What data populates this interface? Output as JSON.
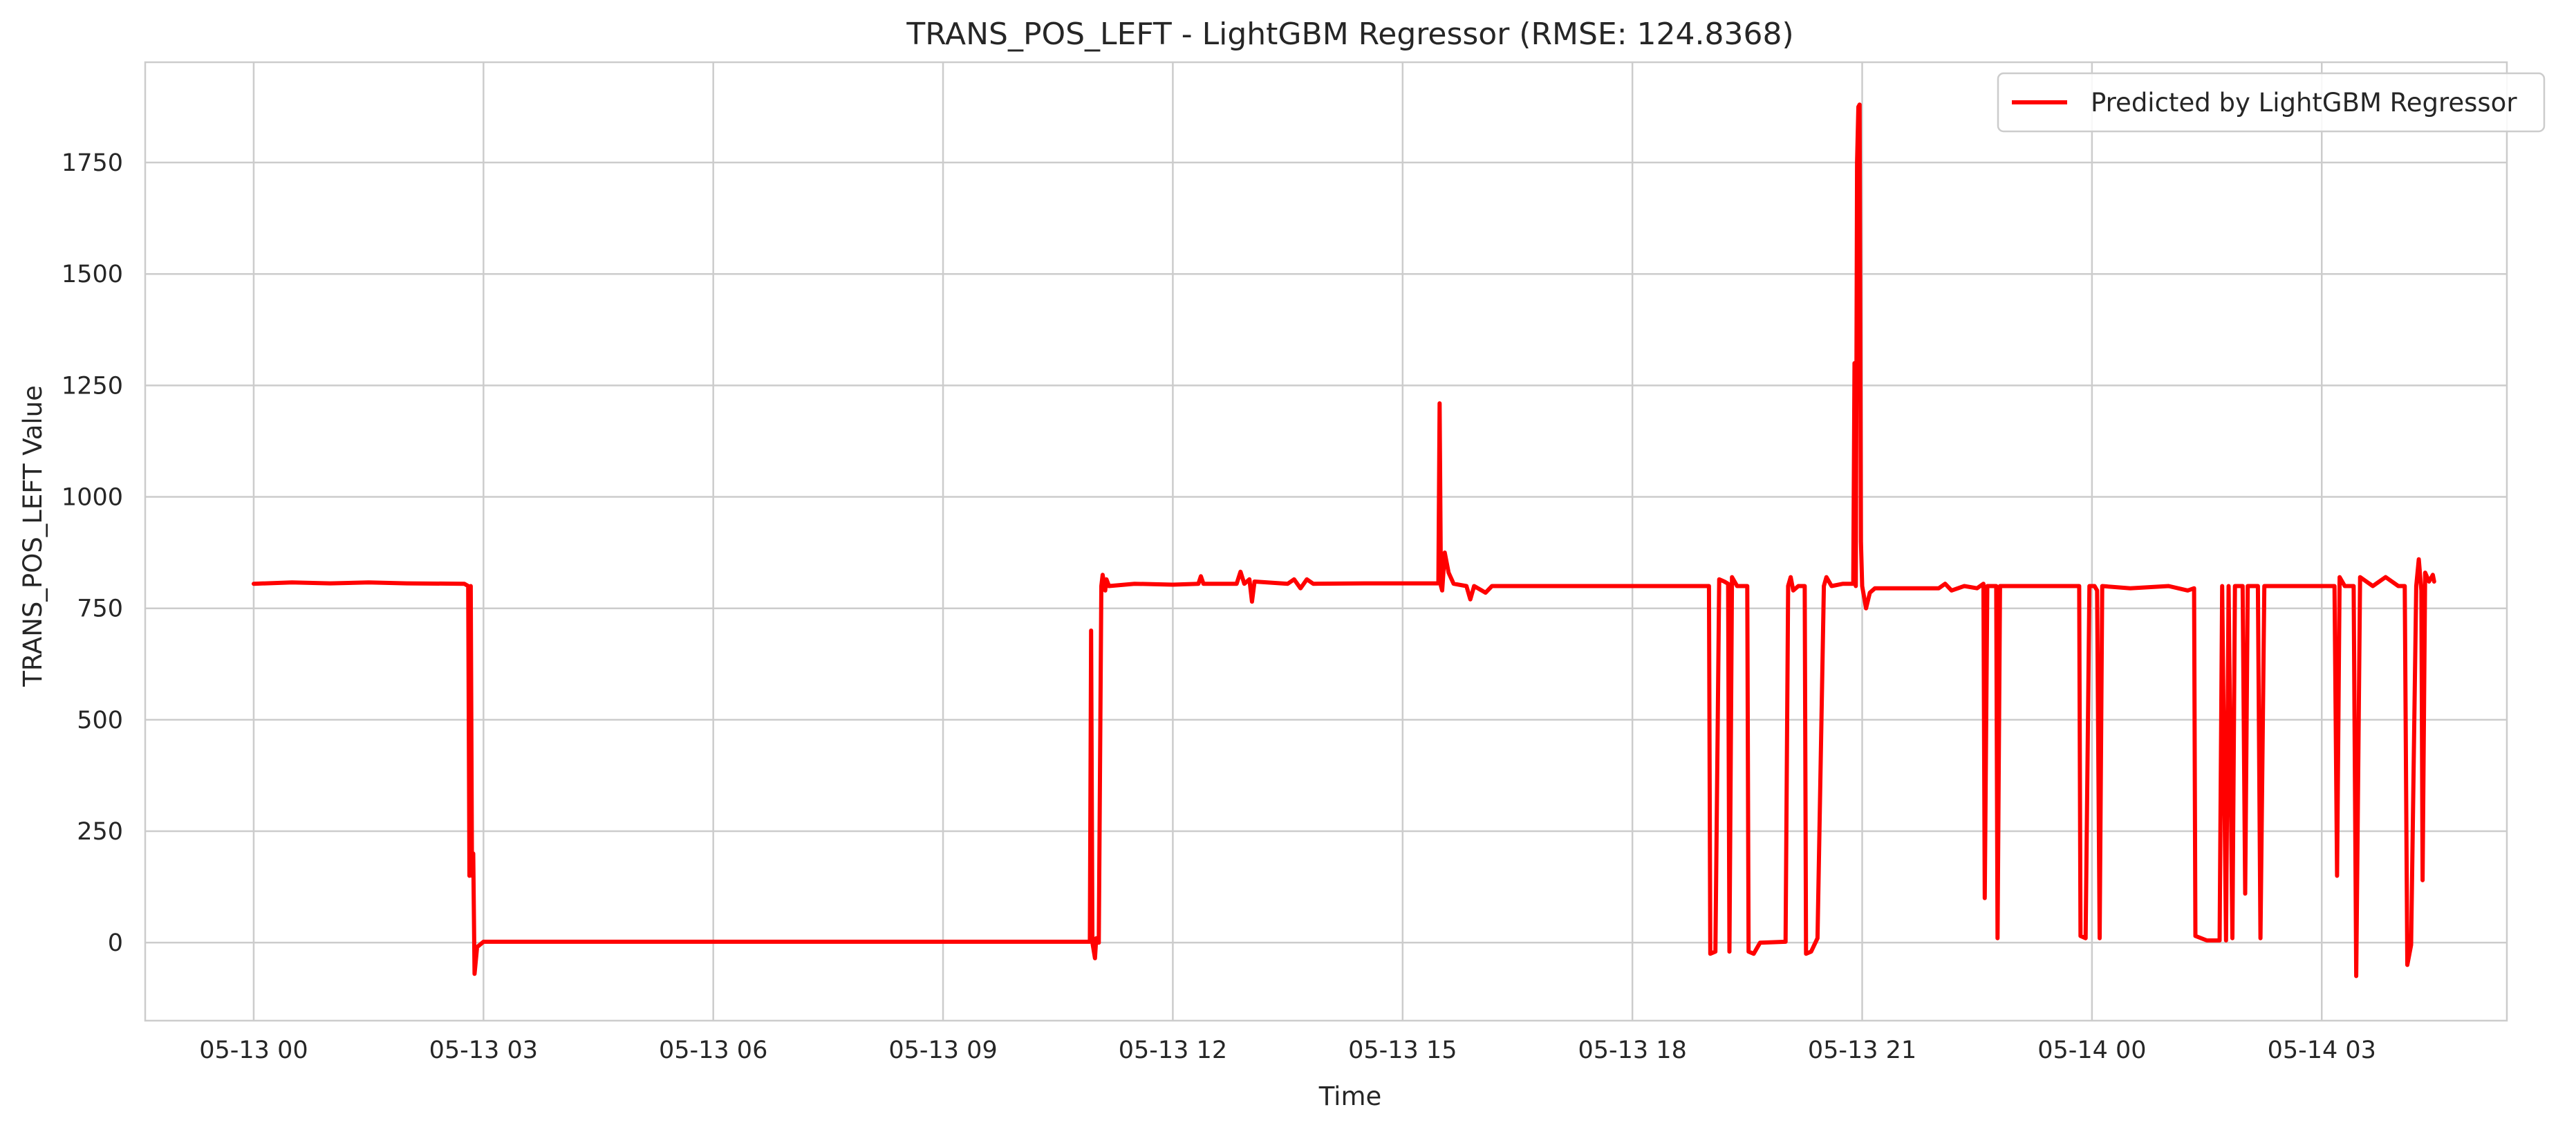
{
  "chart_data": {
    "type": "line",
    "title": "TRANS_POS_LEFT - LightGBM Regressor (RMSE: 124.8368)",
    "xlabel": "Time",
    "ylabel": "TRANS_POS_LEFT Value",
    "x_axis_type": "datetime",
    "xlim": [
      "2024-05-12 22:35",
      "2024-05-14 05:25"
    ],
    "ylim": [
      -175,
      1975
    ],
    "x_ticks": [
      {
        "t": "2024-05-13 00:00",
        "label": "05-13 00"
      },
      {
        "t": "2024-05-13 03:00",
        "label": "05-13 03"
      },
      {
        "t": "2024-05-13 06:00",
        "label": "05-13 06"
      },
      {
        "t": "2024-05-13 09:00",
        "label": "05-13 09"
      },
      {
        "t": "2024-05-13 12:00",
        "label": "05-13 12"
      },
      {
        "t": "2024-05-13 15:00",
        "label": "05-13 15"
      },
      {
        "t": "2024-05-13 18:00",
        "label": "05-13 18"
      },
      {
        "t": "2024-05-13 21:00",
        "label": "05-13 21"
      },
      {
        "t": "2024-05-14 00:00",
        "label": "05-14 00"
      },
      {
        "t": "2024-05-14 03:00",
        "label": "05-14 03"
      }
    ],
    "y_ticks": [
      0,
      250,
      500,
      750,
      1000,
      1250,
      1500,
      1750
    ],
    "grid": true,
    "legend_position": "top-right",
    "series": [
      {
        "name": "Predicted by LightGBM Regressor",
        "color": "#ff0000",
        "points": [
          [
            "2024-05-13 00:00",
            805
          ],
          [
            "2024-05-13 00:30",
            808
          ],
          [
            "2024-05-13 01:00",
            806
          ],
          [
            "2024-05-13 01:30",
            808
          ],
          [
            "2024-05-13 02:00",
            806
          ],
          [
            "2024-05-13 02:45",
            805
          ],
          [
            "2024-05-13 02:48",
            800
          ],
          [
            "2024-05-13 02:49",
            150
          ],
          [
            "2024-05-13 02:50",
            800
          ],
          [
            "2024-05-13 02:51",
            150
          ],
          [
            "2024-05-13 02:52",
            200
          ],
          [
            "2024-05-13 02:53",
            -70
          ],
          [
            "2024-05-13 02:55",
            -10
          ],
          [
            "2024-05-13 03:00",
            2
          ],
          [
            "2024-05-13 06:00",
            2
          ],
          [
            "2024-05-13 09:00",
            2
          ],
          [
            "2024-05-13 10:55",
            2
          ],
          [
            "2024-05-13 10:56",
            700
          ],
          [
            "2024-05-13 10:57",
            0
          ],
          [
            "2024-05-13 10:59",
            -35
          ],
          [
            "2024-05-13 11:00",
            10
          ],
          [
            "2024-05-13 11:02",
            0
          ],
          [
            "2024-05-13 11:04",
            800
          ],
          [
            "2024-05-13 11:05",
            825
          ],
          [
            "2024-05-13 11:07",
            790
          ],
          [
            "2024-05-13 11:08",
            815
          ],
          [
            "2024-05-13 11:10",
            800
          ],
          [
            "2024-05-13 11:30",
            805
          ],
          [
            "2024-05-13 12:00",
            803
          ],
          [
            "2024-05-13 12:20",
            805
          ],
          [
            "2024-05-13 12:22",
            822
          ],
          [
            "2024-05-13 12:24",
            805
          ],
          [
            "2024-05-13 12:50",
            805
          ],
          [
            "2024-05-13 12:53",
            832
          ],
          [
            "2024-05-13 12:56",
            805
          ],
          [
            "2024-05-13 13:00",
            815
          ],
          [
            "2024-05-13 13:02",
            765
          ],
          [
            "2024-05-13 13:04",
            810
          ],
          [
            "2024-05-13 13:30",
            805
          ],
          [
            "2024-05-13 13:35",
            815
          ],
          [
            "2024-05-13 13:40",
            795
          ],
          [
            "2024-05-13 13:45",
            815
          ],
          [
            "2024-05-13 13:50",
            805
          ],
          [
            "2024-05-13 14:30",
            806
          ],
          [
            "2024-05-13 15:00",
            806
          ],
          [
            "2024-05-13 15:28",
            806
          ],
          [
            "2024-05-13 15:29",
            1210
          ],
          [
            "2024-05-13 15:30",
            800
          ],
          [
            "2024-05-13 15:31",
            790
          ],
          [
            "2024-05-13 15:33",
            875
          ],
          [
            "2024-05-13 15:36",
            830
          ],
          [
            "2024-05-13 15:40",
            805
          ],
          [
            "2024-05-13 15:50",
            800
          ],
          [
            "2024-05-13 15:53",
            770
          ],
          [
            "2024-05-13 15:56",
            800
          ],
          [
            "2024-05-13 16:05",
            785
          ],
          [
            "2024-05-13 16:10",
            800
          ],
          [
            "2024-05-13 17:00",
            800
          ],
          [
            "2024-05-13 18:00",
            800
          ],
          [
            "2024-05-13 19:00",
            800
          ],
          [
            "2024-05-13 19:01",
            -25
          ],
          [
            "2024-05-13 19:05",
            -20
          ],
          [
            "2024-05-13 19:08",
            815
          ],
          [
            "2024-05-13 19:12",
            810
          ],
          [
            "2024-05-13 19:15",
            805
          ],
          [
            "2024-05-13 19:16",
            -20
          ],
          [
            "2024-05-13 19:18",
            820
          ],
          [
            "2024-05-13 19:22",
            800
          ],
          [
            "2024-05-13 19:30",
            800
          ],
          [
            "2024-05-13 19:31",
            -20
          ],
          [
            "2024-05-13 19:35",
            -25
          ],
          [
            "2024-05-13 19:40",
            0
          ],
          [
            "2024-05-13 20:00",
            2
          ],
          [
            "2024-05-13 20:02",
            800
          ],
          [
            "2024-05-13 20:04",
            820
          ],
          [
            "2024-05-13 20:06",
            790
          ],
          [
            "2024-05-13 20:10",
            800
          ],
          [
            "2024-05-13 20:15",
            800
          ],
          [
            "2024-05-13 20:16",
            -25
          ],
          [
            "2024-05-13 20:20",
            -20
          ],
          [
            "2024-05-13 20:25",
            10
          ],
          [
            "2024-05-13 20:30",
            800
          ],
          [
            "2024-05-13 20:32",
            820
          ],
          [
            "2024-05-13 20:36",
            800
          ],
          [
            "2024-05-13 20:45",
            805
          ],
          [
            "2024-05-13 20:53",
            805
          ],
          [
            "2024-05-13 20:54",
            1300
          ],
          [
            "2024-05-13 20:55",
            800
          ],
          [
            "2024-05-13 20:56",
            1750
          ],
          [
            "2024-05-13 20:57",
            1875
          ],
          [
            "2024-05-13 20:58",
            1880
          ],
          [
            "2024-05-13 20:59",
            900
          ],
          [
            "2024-05-13 21:00",
            800
          ],
          [
            "2024-05-13 21:03",
            750
          ],
          [
            "2024-05-13 21:06",
            785
          ],
          [
            "2024-05-13 21:10",
            795
          ],
          [
            "2024-05-13 22:00",
            795
          ],
          [
            "2024-05-13 22:05",
            805
          ],
          [
            "2024-05-13 22:10",
            790
          ],
          [
            "2024-05-13 22:20",
            800
          ],
          [
            "2024-05-13 22:30",
            795
          ],
          [
            "2024-05-13 22:35",
            805
          ],
          [
            "2024-05-13 22:36",
            100
          ],
          [
            "2024-05-13 22:38",
            800
          ],
          [
            "2024-05-13 22:45",
            800
          ],
          [
            "2024-05-13 22:46",
            10
          ],
          [
            "2024-05-13 22:48",
            800
          ],
          [
            "2024-05-13 23:00",
            800
          ],
          [
            "2024-05-13 23:30",
            800
          ],
          [
            "2024-05-13 23:50",
            800
          ],
          [
            "2024-05-13 23:51",
            15
          ],
          [
            "2024-05-13 23:55",
            10
          ],
          [
            "2024-05-13 23:58",
            800
          ],
          [
            "2024-05-14 00:02",
            800
          ],
          [
            "2024-05-14 00:04",
            790
          ],
          [
            "2024-05-14 00:06",
            10
          ],
          [
            "2024-05-14 00:08",
            800
          ],
          [
            "2024-05-14 00:30",
            795
          ],
          [
            "2024-05-14 01:00",
            800
          ],
          [
            "2024-05-14 01:15",
            790
          ],
          [
            "2024-05-14 01:20",
            795
          ],
          [
            "2024-05-14 01:21",
            15
          ],
          [
            "2024-05-14 01:30",
            5
          ],
          [
            "2024-05-14 01:40",
            5
          ],
          [
            "2024-05-14 01:42",
            800
          ],
          [
            "2024-05-14 01:45",
            5
          ],
          [
            "2024-05-14 01:47",
            800
          ],
          [
            "2024-05-14 01:50",
            10
          ],
          [
            "2024-05-14 01:52",
            800
          ],
          [
            "2024-05-14 01:58",
            800
          ],
          [
            "2024-05-14 02:00",
            110
          ],
          [
            "2024-05-14 02:02",
            800
          ],
          [
            "2024-05-14 02:10",
            800
          ],
          [
            "2024-05-14 02:12",
            10
          ],
          [
            "2024-05-14 02:15",
            800
          ],
          [
            "2024-05-14 02:30",
            800
          ],
          [
            "2024-05-14 03:00",
            800
          ],
          [
            "2024-05-14 03:10",
            800
          ],
          [
            "2024-05-14 03:12",
            150
          ],
          [
            "2024-05-14 03:14",
            820
          ],
          [
            "2024-05-14 03:18",
            800
          ],
          [
            "2024-05-14 03:25",
            800
          ],
          [
            "2024-05-14 03:27",
            -75
          ],
          [
            "2024-05-14 03:30",
            820
          ],
          [
            "2024-05-14 03:40",
            800
          ],
          [
            "2024-05-14 03:50",
            820
          ],
          [
            "2024-05-14 04:00",
            800
          ],
          [
            "2024-05-14 04:05",
            800
          ],
          [
            "2024-05-14 04:07",
            -50
          ],
          [
            "2024-05-14 04:10",
            -5
          ],
          [
            "2024-05-14 04:14",
            800
          ],
          [
            "2024-05-14 04:16",
            860
          ],
          [
            "2024-05-14 04:18",
            790
          ],
          [
            "2024-05-14 04:19",
            140
          ],
          [
            "2024-05-14 04:21",
            830
          ],
          [
            "2024-05-14 04:24",
            810
          ],
          [
            "2024-05-14 04:27",
            825
          ],
          [
            "2024-05-14 04:28",
            810
          ]
        ]
      }
    ]
  }
}
